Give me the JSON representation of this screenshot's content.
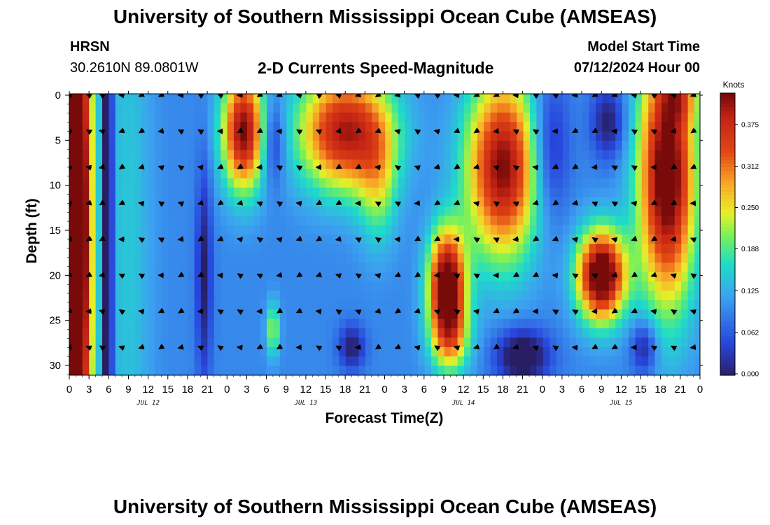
{
  "header": {
    "title": "University of Southern Mississippi Ocean Cube (AMSEAS)",
    "station": "HRSN",
    "coords": "30.2610N  89.0801W",
    "subtitle": "2-D Currents Speed-Magnitude",
    "start_label": "Model Start Time",
    "start_value": "07/12/2024 Hour 00"
  },
  "footer": {
    "title": "University of Southern Mississippi Ocean Cube (AMSEAS)"
  },
  "chart_data": {
    "type": "heatmap",
    "title": "2-D Currents Speed-Magnitude",
    "xlabel": "Forecast Time(Z)",
    "ylabel": "Depth (ft)",
    "xlim": [
      0,
      96
    ],
    "ylim": [
      0,
      31
    ],
    "x_ticks": [
      0,
      3,
      6,
      9,
      12,
      15,
      18,
      21,
      24,
      27,
      30,
      33,
      36,
      39,
      42,
      45,
      48,
      51,
      54,
      57,
      60,
      63,
      66,
      69,
      72,
      75,
      78,
      81,
      84,
      87,
      90,
      93,
      96
    ],
    "x_tick_labels": [
      "0",
      "3",
      "6",
      "9",
      "12",
      "15",
      "18",
      "21",
      "0",
      "3",
      "6",
      "9",
      "12",
      "15",
      "18",
      "21",
      "0",
      "3",
      "6",
      "9",
      "12",
      "15",
      "18",
      "21",
      "0",
      "3",
      "6",
      "9",
      "12",
      "15",
      "18",
      "21",
      "0"
    ],
    "date_labels": [
      {
        "label": "JUL 12",
        "hour": 12
      },
      {
        "label": "JUL 13",
        "hour": 36
      },
      {
        "label": "JUL 14",
        "hour": 60
      },
      {
        "label": "JUL 15",
        "hour": 84
      }
    ],
    "y_ticks": [
      0,
      5,
      10,
      15,
      20,
      25,
      30
    ],
    "y_tick_labels": [
      "0",
      "5",
      "10",
      "15",
      "20",
      "25",
      "30"
    ],
    "colorbar": {
      "label": "Knots",
      "min": 0.0,
      "max": 0.42,
      "ticks": [
        0.0,
        0.062,
        0.125,
        0.188,
        0.25,
        0.312,
        0.375
      ],
      "tick_labels": [
        "0.000",
        "0.062",
        "0.125",
        "0.188",
        "0.250",
        "0.312",
        "0.375"
      ]
    },
    "arrow_hours": [
      0,
      3,
      5,
      8,
      11,
      14,
      17,
      20,
      23,
      26,
      29,
      32,
      35,
      38,
      41,
      44,
      47,
      50,
      53,
      56,
      59,
      62,
      65,
      68,
      71,
      74,
      77,
      80,
      83,
      86,
      89,
      92,
      95
    ],
    "arrow_depths": [
      0,
      4,
      8,
      12,
      16,
      20,
      24,
      28
    ],
    "speed_blobs": [
      {
        "hour": 1.2,
        "depth": 15,
        "dt": 2.2,
        "dd": 40,
        "v": 0.44
      },
      {
        "hour": 5.8,
        "depth": 15,
        "dt": 0.6,
        "dd": 40,
        "v": -0.32
      },
      {
        "hour": 9,
        "depth": 15,
        "dt": 3.5,
        "dd": 40,
        "v": 0.05
      },
      {
        "hour": 20.5,
        "depth": 20,
        "dt": 1.2,
        "dd": 12,
        "v": -0.1
      },
      {
        "hour": 26.5,
        "depth": 4,
        "dt": 3.2,
        "dd": 6.5,
        "v": 0.32
      },
      {
        "hour": 31,
        "depth": 5,
        "dt": 1.8,
        "dd": 5,
        "v": -0.1
      },
      {
        "hour": 42,
        "depth": 4,
        "dt": 7,
        "dd": 6.5,
        "v": 0.3
      },
      {
        "hour": 47,
        "depth": 10,
        "dt": 3,
        "dd": 7,
        "v": 0.1
      },
      {
        "hour": 57.5,
        "depth": 21,
        "dt": 2.8,
        "dd": 6,
        "v": 0.36
      },
      {
        "hour": 58,
        "depth": 27,
        "dt": 3,
        "dd": 4,
        "v": 0.15
      },
      {
        "hour": 66,
        "depth": 8,
        "dt": 5.5,
        "dd": 10,
        "v": 0.32
      },
      {
        "hour": 69,
        "depth": 29,
        "dt": 4,
        "dd": 3,
        "v": -0.14
      },
      {
        "hour": 73,
        "depth": 6,
        "dt": 3,
        "dd": 8,
        "v": -0.1
      },
      {
        "hour": 81,
        "depth": 20,
        "dt": 3.6,
        "dd": 5,
        "v": 0.38
      },
      {
        "hour": 91,
        "depth": 9,
        "dt": 4.3,
        "dd": 14,
        "v": 0.36
      },
      {
        "hour": 93,
        "depth": 0,
        "dt": 3,
        "dd": 3,
        "v": 0.1
      },
      {
        "hour": 82,
        "depth": 3,
        "dt": 2.5,
        "dd": 4,
        "v": -0.1
      },
      {
        "hour": 43,
        "depth": 28,
        "dt": 2,
        "dd": 2.5,
        "v": -0.1
      },
      {
        "hour": 87.5,
        "depth": 28,
        "dt": 2,
        "dd": 3,
        "v": -0.1
      },
      {
        "hour": 31,
        "depth": 26,
        "dt": 1,
        "dd": 3,
        "v": 0.13
      }
    ]
  }
}
